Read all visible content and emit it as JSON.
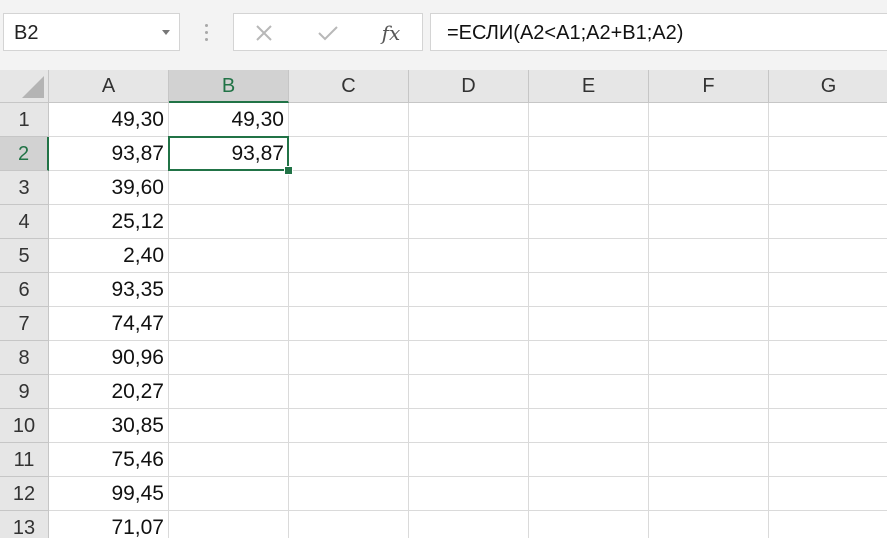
{
  "name_box": {
    "value": "B2"
  },
  "formula_bar": {
    "formula": "=ЕСЛИ(A2<A1;A2+B1;A2)",
    "cancel_icon": "close-icon",
    "enter_icon": "check-icon",
    "fx_label": "fx"
  },
  "colors": {
    "accent": "#217346",
    "header_bg": "#e6e6e6",
    "header_sel_bg": "#d2d2d2",
    "gridline": "#dadada"
  },
  "selection": {
    "cell": "B2",
    "column": "B",
    "row": "2"
  },
  "columns": [
    "A",
    "B",
    "C",
    "D",
    "E",
    "F",
    "G"
  ],
  "rows": [
    {
      "label": "1",
      "A": "49,30",
      "B": "49,30"
    },
    {
      "label": "2",
      "A": "93,87",
      "B": "93,87"
    },
    {
      "label": "3",
      "A": "39,60",
      "B": ""
    },
    {
      "label": "4",
      "A": "25,12",
      "B": ""
    },
    {
      "label": "5",
      "A": "2,40",
      "B": ""
    },
    {
      "label": "6",
      "A": "93,35",
      "B": ""
    },
    {
      "label": "7",
      "A": "74,47",
      "B": ""
    },
    {
      "label": "8",
      "A": "90,96",
      "B": ""
    },
    {
      "label": "9",
      "A": "20,27",
      "B": ""
    },
    {
      "label": "10",
      "A": "30,85",
      "B": ""
    },
    {
      "label": "11",
      "A": "75,46",
      "B": ""
    },
    {
      "label": "12",
      "A": "99,45",
      "B": ""
    },
    {
      "label": "13",
      "A": "71,07",
      "B": ""
    }
  ]
}
